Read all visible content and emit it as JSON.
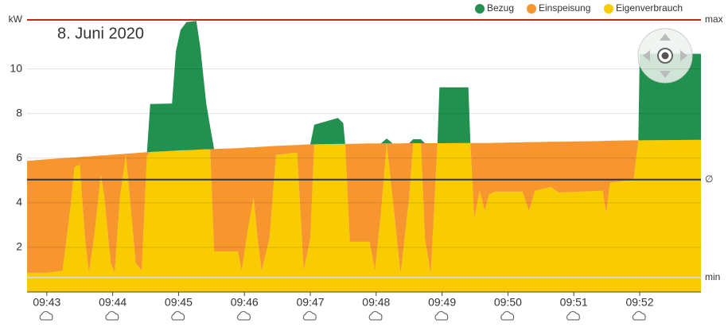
{
  "chart_data": {
    "type": "area",
    "subtitle": "8. Juni 2020",
    "y_unit": "kW",
    "xlim": [
      42.7,
      52.93
    ],
    "xticks": [
      {
        "value": 43,
        "label": "09:43"
      },
      {
        "value": 44,
        "label": "09:44"
      },
      {
        "value": 45,
        "label": "09:45"
      },
      {
        "value": 46,
        "label": "09:46"
      },
      {
        "value": 47,
        "label": "09:47"
      },
      {
        "value": 48,
        "label": "09:48"
      },
      {
        "value": 49,
        "label": "09:49"
      },
      {
        "value": 50,
        "label": "09:50"
      },
      {
        "value": 51,
        "label": "09:51"
      },
      {
        "value": 52,
        "label": "09:52"
      }
    ],
    "ylim": [
      0,
      12.2
    ],
    "yticks": [
      2,
      4,
      6,
      8,
      10
    ],
    "grid": true,
    "legend": "top-right",
    "reference_lines": [
      {
        "label": "max",
        "value": 12.2,
        "color": "#c0281c"
      },
      {
        "label": "∅",
        "value": 5.04,
        "color": "#1f3a5a"
      },
      {
        "label": "min",
        "value": 0.65,
        "color": "#d8d8d8"
      }
    ],
    "x": [
      42.7,
      43.0,
      43.24,
      43.36,
      43.42,
      43.5,
      43.58,
      43.64,
      43.73,
      43.82,
      43.87,
      43.97,
      44.03,
      44.11,
      44.2,
      44.26,
      44.35,
      44.44,
      44.52,
      44.57,
      44.9,
      44.96,
      45.03,
      45.12,
      45.27,
      45.33,
      45.42,
      45.48,
      45.54,
      45.9,
      45.96,
      46.05,
      46.14,
      46.2,
      46.26,
      46.38,
      46.48,
      46.8,
      46.9,
      47.0,
      47.06,
      47.42,
      47.5,
      47.53,
      47.6,
      47.9,
      47.98,
      48.07,
      48.16,
      48.25,
      48.37,
      48.5,
      48.56,
      48.68,
      48.74,
      48.83,
      48.93,
      48.96,
      49.4,
      49.43,
      49.49,
      49.57,
      49.65,
      49.71,
      49.8,
      50.22,
      50.32,
      50.41,
      50.65,
      50.77,
      51.44,
      51.49,
      51.55,
      51.91,
      51.98,
      52.0,
      52.93
    ],
    "series": [
      {
        "name": "Eigenverbrauch",
        "color": "#f8cc00",
        "values": [
          0.86,
          0.86,
          0.96,
          3.8,
          5.6,
          5.7,
          2.4,
          0.86,
          2.75,
          5.25,
          4.35,
          1.3,
          0.86,
          4.2,
          6.15,
          4.2,
          1.3,
          0.96,
          6.1,
          6.28,
          6.33,
          6.34,
          6.35,
          6.36,
          6.38,
          6.39,
          6.4,
          6.4,
          1.82,
          1.82,
          0.96,
          2.75,
          4.25,
          2.4,
          0.96,
          2.4,
          6.15,
          6.25,
          0.96,
          2.4,
          6.62,
          6.64,
          6.64,
          6.64,
          2.25,
          2.25,
          0.96,
          3.46,
          6.66,
          4.2,
          0.79,
          4.2,
          6.67,
          6.67,
          2.4,
          0.79,
          6.67,
          6.67,
          6.68,
          6.68,
          3.29,
          4.54,
          3.64,
          4.36,
          4.5,
          4.5,
          3.64,
          4.54,
          4.71,
          4.46,
          4.54,
          3.54,
          4.9,
          5.04,
          6.8,
          6.8,
          6.82
        ]
      },
      {
        "name": "Einspeisung",
        "color": "#f7952e",
        "values": [
          5.02,
          5.09,
          5.04,
          2.22,
          0.43,
          0.35,
          3.67,
          5.22,
          3.35,
          0.87,
          1.78,
          4.85,
          5.3,
          1.98,
          0.05,
          2.01,
          4.93,
          5.29,
          0.17,
          0,
          0,
          0,
          0,
          0,
          0,
          0,
          0,
          0,
          4.59,
          4.63,
          5.5,
          3.73,
          2.24,
          4.1,
          5.55,
          4.13,
          0.4,
          0.34,
          5.65,
          4.22,
          0,
          0,
          0,
          0,
          4.39,
          4.41,
          5.7,
          3.2,
          0,
          2.46,
          5.87,
          2.47,
          0,
          0,
          4.27,
          5.88,
          0,
          0,
          0,
          0,
          3.39,
          2.14,
          3.04,
          2.32,
          2.19,
          2.21,
          3.08,
          2.18,
          2.03,
          2.28,
          2.23,
          3.24,
          1.88,
          1.76,
          0,
          0,
          0
        ]
      },
      {
        "name": "Bezug",
        "color": "#229150",
        "values": [
          0,
          0,
          0,
          0,
          0,
          0,
          0,
          0,
          0,
          0,
          0,
          0,
          0,
          0,
          0,
          0,
          0,
          0,
          0,
          2.15,
          2.12,
          4.46,
          5.4,
          5.74,
          5.77,
          4.57,
          2.06,
          1.0,
          0,
          0,
          0,
          0,
          0,
          0,
          0,
          0,
          0,
          0,
          0,
          0,
          0.88,
          1.16,
          0.93,
          0,
          0,
          0,
          0,
          0,
          0.22,
          0,
          0,
          0,
          0.18,
          0.18,
          0,
          0,
          0,
          2.51,
          2.5,
          0,
          0,
          0,
          0,
          0,
          0,
          0,
          0,
          0,
          0,
          0,
          0,
          0,
          0,
          0,
          0,
          3.88,
          3.86
        ]
      }
    ]
  }
}
